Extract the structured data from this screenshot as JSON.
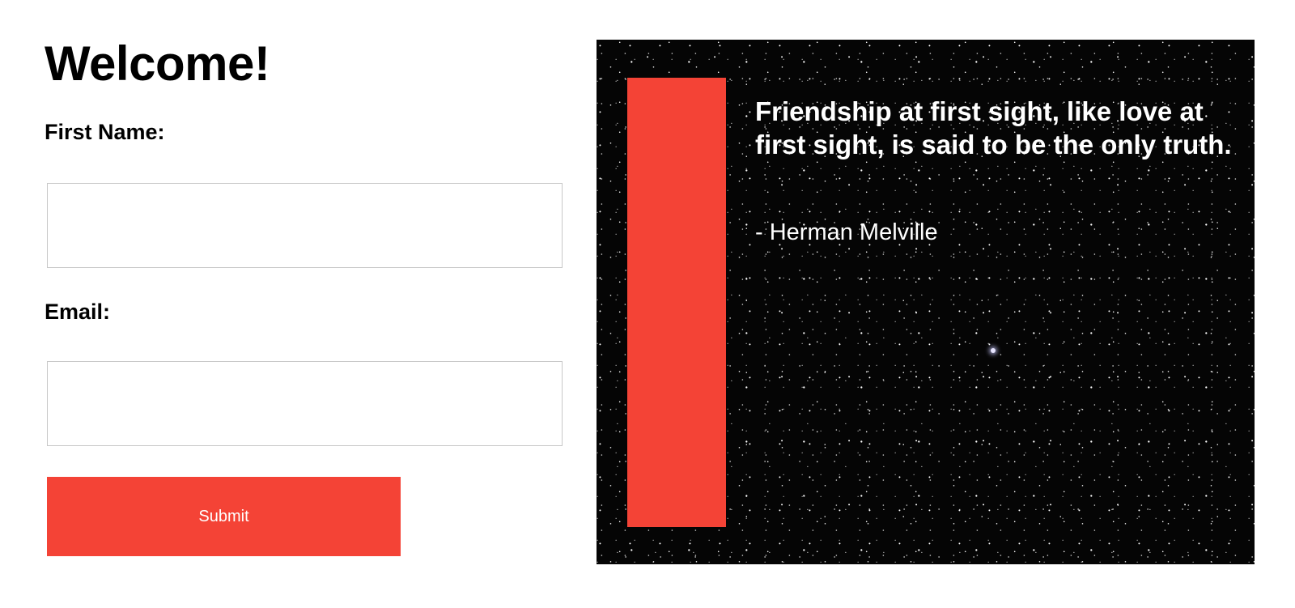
{
  "form": {
    "title": "Welcome!",
    "first_name_label": "First Name:",
    "first_name_value": "",
    "email_label": "Email:",
    "email_value": "",
    "submit_label": "Submit"
  },
  "quote": {
    "text": "Friendship at first sight, like love at first sight, is said to be the only truth.",
    "author": "- Herman Melville"
  },
  "colors": {
    "accent": "#f44336",
    "panel_background": "#050505",
    "input_border": "#c8c8c8"
  },
  "icons": {
    "quote_background": "starfield-image"
  }
}
